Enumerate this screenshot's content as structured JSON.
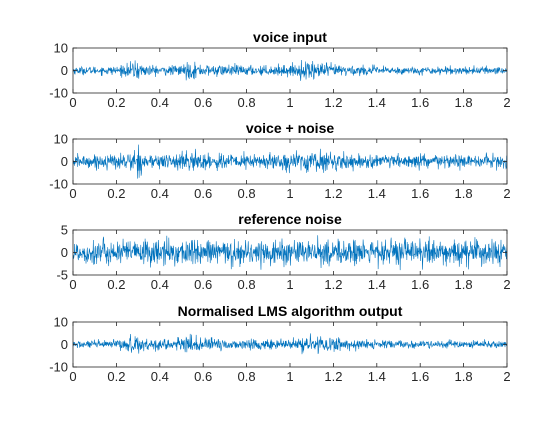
{
  "figure": {
    "background": "#ffffff",
    "axes_color": "#262626"
  },
  "chart_data": [
    {
      "type": "line",
      "title": "voice input",
      "xlabel": "",
      "ylabel": "",
      "xlim": [
        0,
        2
      ],
      "ylim": [
        -10,
        10
      ],
      "xticks": [
        0,
        0.2,
        0.4,
        0.6,
        0.8,
        1,
        1.2,
        1.4,
        1.6,
        1.8,
        2
      ],
      "xtick_labels": [
        "0",
        "0.2",
        "0.4",
        "0.6",
        "0.8",
        "1",
        "1.2",
        "1.4",
        "1.6",
        "1.8",
        "2"
      ],
      "yticks": [
        -10,
        0,
        10
      ],
      "ytick_labels": [
        "-10",
        "0",
        "10"
      ],
      "grid": false,
      "series": [
        {
          "color": "#0072BD",
          "envelope": {
            "x": [
              0,
              0.1,
              0.2,
              0.26,
              0.29,
              0.32,
              0.38,
              0.45,
              0.5,
              0.53,
              0.56,
              0.6,
              0.7,
              0.8,
              0.9,
              1.0,
              1.05,
              1.1,
              1.13,
              1.18,
              1.25,
              1.35,
              1.45,
              1.6,
              1.8,
              2.0
            ],
            "amp": [
              2,
              2,
              2.3,
              3.5,
              5.5,
              3.5,
              2.5,
              2.5,
              3,
              4.5,
              4,
              3,
              3,
              2.8,
              2.5,
              3,
              4,
              5.5,
              4.5,
              3.5,
              3,
              2.5,
              2,
              2,
              2,
              2
            ]
          }
        }
      ]
    },
    {
      "type": "line",
      "title": "voice + noise",
      "xlabel": "",
      "ylabel": "",
      "xlim": [
        0,
        2
      ],
      "ylim": [
        -10,
        10
      ],
      "xticks": [
        0,
        0.2,
        0.4,
        0.6,
        0.8,
        1,
        1.2,
        1.4,
        1.6,
        1.8,
        2
      ],
      "xtick_labels": [
        "0",
        "0.2",
        "0.4",
        "0.6",
        "0.8",
        "1",
        "1.2",
        "1.4",
        "1.6",
        "1.8",
        "2"
      ],
      "yticks": [
        -10,
        0,
        10
      ],
      "ytick_labels": [
        "-10",
        "0",
        "10"
      ],
      "grid": false,
      "series": [
        {
          "color": "#0072BD",
          "envelope": {
            "x": [
              0,
              0.1,
              0.2,
              0.26,
              0.29,
              0.32,
              0.38,
              0.45,
              0.5,
              0.53,
              0.56,
              0.6,
              0.7,
              0.8,
              0.9,
              1.0,
              1.05,
              1.1,
              1.13,
              1.18,
              1.25,
              1.35,
              1.45,
              1.6,
              1.8,
              2.0
            ],
            "amp": [
              3.5,
              3.5,
              4,
              5,
              7.5,
              5,
              4,
              4,
              4.5,
              5.5,
              5,
              4.5,
              4.5,
              4,
              4,
              4.5,
              5,
              6.5,
              5.5,
              4.5,
              4,
              3.5,
              3.5,
              3.5,
              3.5,
              3.5
            ]
          }
        }
      ]
    },
    {
      "type": "line",
      "title": "reference noise",
      "xlabel": "",
      "ylabel": "",
      "xlim": [
        0,
        2
      ],
      "ylim": [
        -5,
        5
      ],
      "xticks": [
        0,
        0.2,
        0.4,
        0.6,
        0.8,
        1,
        1.2,
        1.4,
        1.6,
        1.8,
        2
      ],
      "xtick_labels": [
        "0",
        "0.2",
        "0.4",
        "0.6",
        "0.8",
        "1",
        "1.2",
        "1.4",
        "1.6",
        "1.8",
        "2"
      ],
      "yticks": [
        -5,
        0,
        5
      ],
      "ytick_labels": [
        "-5",
        "0",
        "5"
      ],
      "grid": false,
      "series": [
        {
          "color": "#0072BD",
          "envelope": {
            "x": [
              0,
              0.5,
              1.0,
              1.5,
              2.0
            ],
            "amp": [
              3.2,
              3.4,
              3.3,
              3.4,
              3.2
            ]
          }
        }
      ]
    },
    {
      "type": "line",
      "title": "Normalised LMS algorithm output",
      "xlabel": "",
      "ylabel": "",
      "xlim": [
        0,
        2
      ],
      "ylim": [
        -10,
        10
      ],
      "xticks": [
        0,
        0.2,
        0.4,
        0.6,
        0.8,
        1,
        1.2,
        1.4,
        1.6,
        1.8,
        2
      ],
      "xtick_labels": [
        "0",
        "0.2",
        "0.4",
        "0.6",
        "0.8",
        "1",
        "1.2",
        "1.4",
        "1.6",
        "1.8",
        "2"
      ],
      "yticks": [
        -10,
        0,
        10
      ],
      "ytick_labels": [
        "-10",
        "0",
        "10"
      ],
      "grid": false,
      "series": [
        {
          "color": "#0072BD",
          "envelope": {
            "x": [
              0,
              0.1,
              0.2,
              0.26,
              0.29,
              0.32,
              0.38,
              0.45,
              0.5,
              0.53,
              0.56,
              0.6,
              0.7,
              0.8,
              0.9,
              1.0,
              1.05,
              1.1,
              1.13,
              1.18,
              1.25,
              1.35,
              1.45,
              1.6,
              1.8,
              2.0
            ],
            "amp": [
              2,
              2,
              2.5,
              4,
              6,
              4,
              2.8,
              2.5,
              3.2,
              4.8,
              4.2,
              3.2,
              3,
              3,
              2.6,
              3,
              4,
              5.5,
              4.5,
              3.5,
              3,
              2.5,
              2,
              2,
              2,
              2
            ]
          }
        }
      ]
    }
  ]
}
